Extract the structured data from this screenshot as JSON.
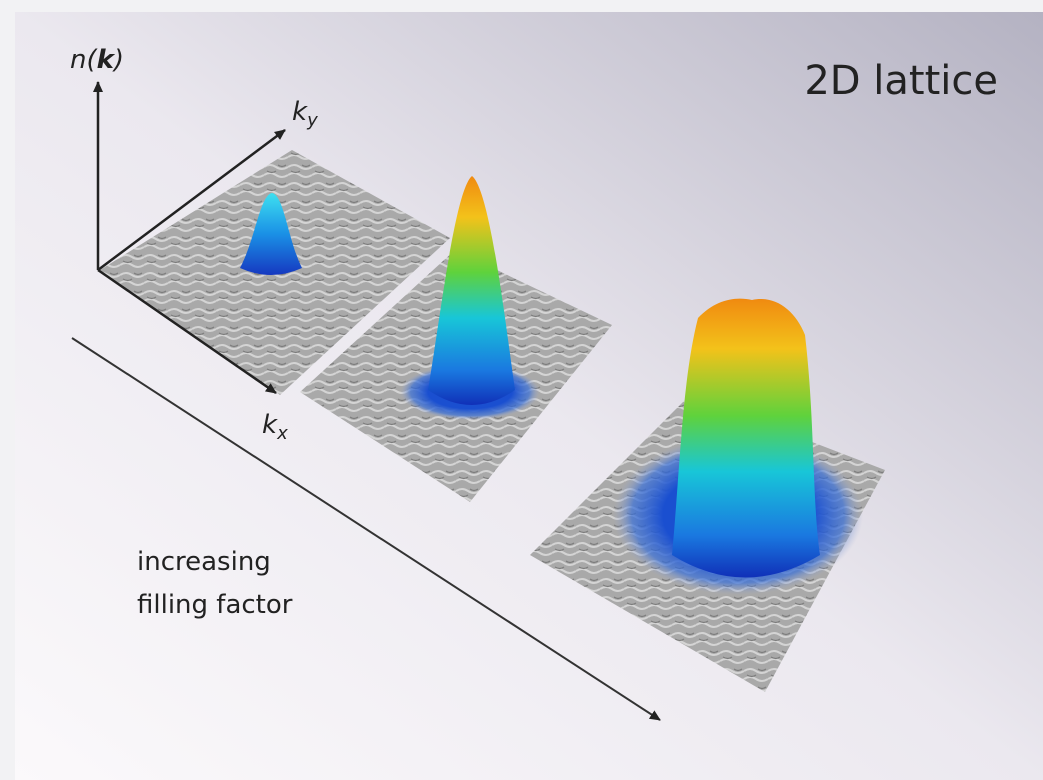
{
  "title": "2D lattice",
  "axes": {
    "vertical": {
      "prefix": "n(",
      "symbol": "k",
      "suffix": ")"
    },
    "ky": {
      "symbol": "k",
      "subscript": "y"
    },
    "kx": {
      "symbol": "k",
      "subscript": "x"
    }
  },
  "caption": {
    "lines": [
      "increasing",
      "filling factor"
    ]
  }
}
